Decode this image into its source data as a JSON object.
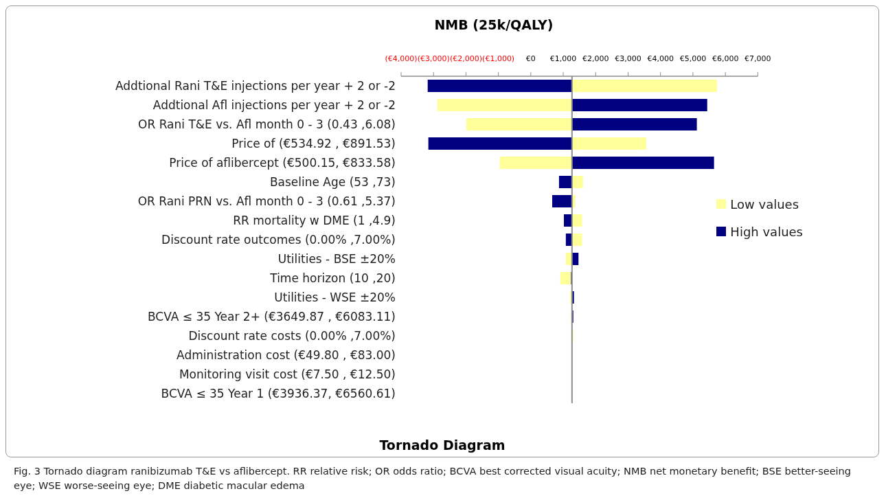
{
  "chart_data": {
    "type": "bar",
    "orientation": "horizontal",
    "title": "Tornado Diagram",
    "xlabel": "NMB (25k/QALY)",
    "categories": [
      "Addtional Rani T&E injections per year + 2 or -2",
      "Addtional Afl injections per year + 2 or -2",
      "OR Rani T&E vs. Afl month 0 - 3 (0.43 ,6.08)",
      "Price of (€534.92 , €891.53)",
      "Price of aflibercept (€500.15, €833.58)",
      "Baseline Age (53 ,73)",
      "OR Rani PRN vs. Afl month 0 - 3 (0.61 ,5.37)",
      "RR mortality w DME (1 ,4.9)",
      "Discount rate outcomes (0.00% ,7.00%)",
      "Utilities - BSE ±20%",
      "Time horizon (10 ,20)",
      "Utilities - WSE ±20%",
      "BCVA ≤ 35 Year 2+ (€3649.87 , €6083.11)",
      "Discount rate costs (0.00% ,7.00%)",
      "Administration cost (€49.80 , €83.00)",
      "Monitoring visit cost (€7.50 , €12.50)",
      "BCVA ≤ 35 Year 1 (€3936.37, €6560.61)"
    ],
    "series": [
      {
        "name": "Low values",
        "color": "#ffff99",
        "base": [
          1270,
          1270,
          1270,
          1270,
          1270,
          1270,
          1270,
          1270,
          1270,
          1270,
          1270,
          1270,
          1270,
          1270,
          null,
          null,
          null
        ],
        "values": [
          4470,
          -4150,
          -3260,
          2290,
          -2230,
          340,
          100,
          310,
          310,
          -190,
          -360,
          -50,
          -30,
          40,
          null,
          null,
          null
        ]
      },
      {
        "name": "High values",
        "color": "#000080",
        "base": [
          1270,
          1270,
          1270,
          1270,
          1270,
          1270,
          1270,
          1270,
          1270,
          1270,
          1270,
          1270,
          1270,
          null,
          null,
          null,
          null
        ],
        "values": [
          -4450,
          4170,
          3850,
          -4430,
          4380,
          -400,
          -610,
          -250,
          -190,
          200,
          -30,
          60,
          40,
          null,
          null,
          null,
          null
        ]
      }
    ],
    "xlim": [
      -4000,
      7000
    ],
    "xticks": [
      {
        "value": -4000,
        "label": "(€4,000)"
      },
      {
        "value": -3000,
        "label": "(€3,000)"
      },
      {
        "value": -2000,
        "label": "(€2,000)"
      },
      {
        "value": -1000,
        "label": "(€1,000)"
      },
      {
        "value": 0,
        "label": "€0"
      },
      {
        "value": 1000,
        "label": "€1,000"
      },
      {
        "value": 2000,
        "label": "€2,000"
      },
      {
        "value": 3000,
        "label": "€3,000"
      },
      {
        "value": 4000,
        "label": "€4,000"
      },
      {
        "value": 5000,
        "label": "€5,000"
      },
      {
        "value": 6000,
        "label": "€6,000"
      },
      {
        "value": 7000,
        "label": "€7,000"
      }
    ],
    "ref_lines": [
      {
        "axis": "x",
        "value": 1270,
        "color": "#8c8c8c"
      }
    ],
    "legend": "right",
    "grid": false,
    "annotations": [
      "Fig. 3  Tornado diagram ranibizumab T&E vs aflibercept. RR relative risk; OR odds ratio; BCVA best corrected visual acuity; NMB net monetary benefit; BSE better-seeing eye; WSE worse-seeing eye; DME diabetic macular edema"
    ]
  }
}
